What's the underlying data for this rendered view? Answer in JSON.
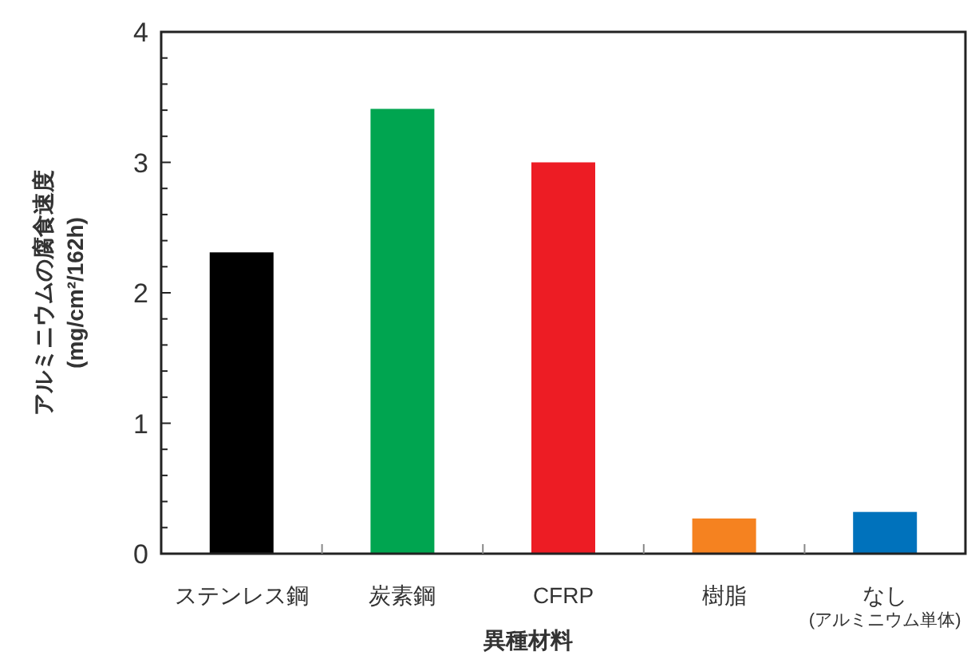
{
  "chart_data": {
    "type": "bar",
    "xlabel": "異種材料",
    "ylabel": "アルミニウムの腐食速度\n(mg/cm²/162h)",
    "categories": [
      "ステンレス鋼",
      "炭素鋼",
      "CFRP",
      "樹脂",
      "なし\n(アルミニウム単体)"
    ],
    "values": [
      2.31,
      3.41,
      3.0,
      0.27,
      0.32
    ],
    "colors": [
      "#000000",
      "#00a550",
      "#ed1c24",
      "#f58220",
      "#0072bc"
    ],
    "ylim": [
      0,
      4
    ],
    "yticks": [
      0,
      {
        "value": 0.2,
        "label": null
      },
      {
        "value": 0.4,
        "label": null
      },
      {
        "value": 0.6,
        "label": null
      },
      {
        "value": 0.8,
        "label": null
      },
      1,
      {
        "value": 1.2,
        "label": null
      },
      {
        "value": 1.4,
        "label": null
      },
      {
        "value": 1.6,
        "label": null
      },
      {
        "value": 1.8,
        "label": null
      },
      2,
      {
        "value": 2.2,
        "label": null
      },
      {
        "value": 2.4,
        "label": null
      },
      {
        "value": 2.6,
        "label": null
      },
      {
        "value": 2.8,
        "label": null
      },
      3,
      {
        "value": 3.2,
        "label": null
      },
      {
        "value": 3.4,
        "label": null
      },
      {
        "value": 3.6,
        "label": null
      },
      {
        "value": 3.8,
        "label": null
      },
      4
    ],
    "grid": false
  }
}
